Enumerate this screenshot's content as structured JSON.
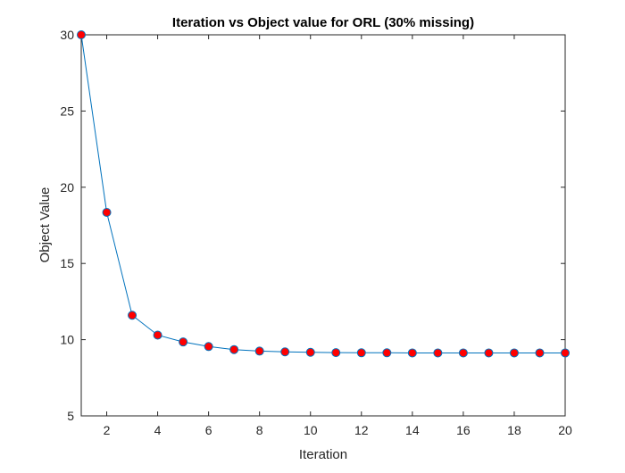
{
  "chart_data": {
    "type": "line",
    "title": "Iteration vs Object value for ORL (30% missing)",
    "xlabel": "Iteration",
    "ylabel": "Object Value",
    "xlim": [
      1,
      20
    ],
    "ylim": [
      5,
      30
    ],
    "x_ticks": [
      2,
      4,
      6,
      8,
      10,
      12,
      14,
      16,
      18,
      20
    ],
    "y_ticks": [
      5,
      10,
      15,
      20,
      25,
      30
    ],
    "grid": false,
    "legend": "none",
    "series": [
      {
        "x": [
          1,
          2,
          3,
          4,
          5,
          6,
          7,
          8,
          9,
          10,
          11,
          12,
          13,
          14,
          15,
          16,
          17,
          18,
          19,
          20
        ],
        "y": [
          30.0,
          18.35,
          11.6,
          10.3,
          9.85,
          9.55,
          9.35,
          9.25,
          9.2,
          9.17,
          9.15,
          9.14,
          9.14,
          9.13,
          9.13,
          9.13,
          9.13,
          9.13,
          9.13,
          9.13
        ],
        "line_color": "#0072bd",
        "marker": "circle",
        "marker_face_color": "#ff0000",
        "marker_edge_color": "#0072bd"
      }
    ]
  }
}
